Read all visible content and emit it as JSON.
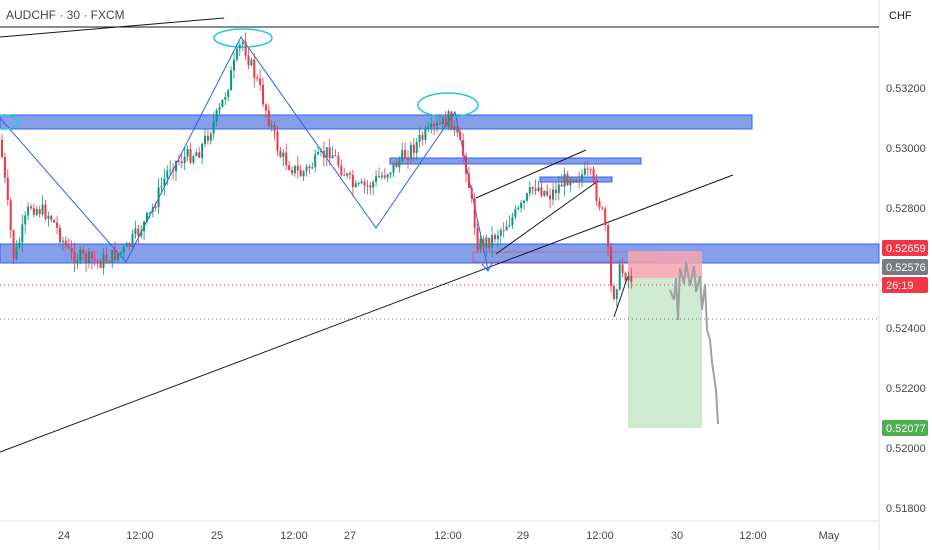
{
  "header": {
    "symbol_title": "AUDCHF · 30 · FXCM",
    "currency": "CHF"
  },
  "chart_data": {
    "type": "candlestick",
    "y_axis": {
      "ticks": [
        "0.53200",
        "0.53000",
        "0.52800",
        "0.52400",
        "0.52200",
        "0.52000",
        "0.51800"
      ]
    },
    "x_axis": {
      "ticks": [
        "24",
        "12:00",
        "25",
        "12:00",
        "27",
        "12:00",
        "29",
        "12:00",
        "30",
        "12:00",
        "May"
      ]
    },
    "price_tags": [
      {
        "label": "0.52659",
        "color": "#f23645",
        "value": 0.52659
      },
      {
        "label": "0.52576",
        "color": "#787b86",
        "value": 0.52576
      },
      {
        "label": "26:19",
        "color": "#f23645",
        "value": 0.52545
      },
      {
        "label": "0.52077",
        "color": "#4caf50",
        "value": 0.52077
      }
    ],
    "colors": {
      "up": "#089981",
      "down": "#f23645",
      "zone": "#5b7fe0",
      "pattern": "#2962ff",
      "ellipse": "#26c6da",
      "stop": "#f7a5ad",
      "target": "#c8e6c9",
      "projection": "#a0a0a0"
    }
  }
}
